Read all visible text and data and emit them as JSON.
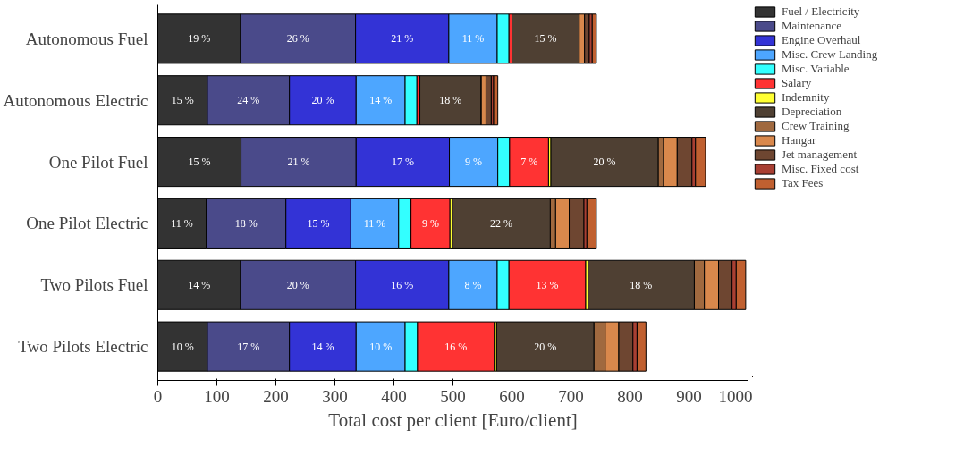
{
  "chart_data": {
    "type": "bar",
    "orientation": "horizontal",
    "stacked": true,
    "categories": [
      "Autonomous Fuel",
      "Autonomous Electric",
      "One Pilot Fuel",
      "One Pilot Electric",
      "Two Pilots Fuel",
      "Two Pilots Electric"
    ],
    "xlabel": "Total cost per client [Euro/client]",
    "xlim": [
      0,
      1000
    ],
    "xticks": [
      0,
      100,
      200,
      300,
      400,
      500,
      600,
      700,
      800,
      900,
      1000
    ],
    "grid": false,
    "legend": "top right",
    "series": [
      {
        "name": "Fuel / Electricity",
        "color": "#333333",
        "values": [
          140,
          84,
          141,
          82,
          140,
          84
        ]
      },
      {
        "name": "Maintenance",
        "color": "#4a4a8a",
        "values": [
          195,
          139,
          195,
          135,
          195,
          139
        ]
      },
      {
        "name": "Engine Overhaul",
        "color": "#3333d6",
        "values": [
          158,
          113,
          158,
          110,
          158,
          113
        ]
      },
      {
        "name": "Misc. Crew Landing",
        "color": "#4da6ff",
        "values": [
          82,
          83,
          82,
          81,
          82,
          83
        ]
      },
      {
        "name": "Misc. Variable",
        "color": "#33ffff",
        "values": [
          20,
          20,
          20,
          21,
          20,
          21
        ]
      },
      {
        "name": "Salary",
        "color": "#ff3333",
        "values": [
          5,
          5,
          66,
          66,
          130,
          130
        ]
      },
      {
        "name": "Indemnity",
        "color": "#ffff33",
        "values": [
          0,
          0,
          4,
          4,
          4,
          4
        ]
      },
      {
        "name": "Depreciation",
        "color": "#4f4033",
        "values": [
          114,
          104,
          182,
          166,
          180,
          165
        ]
      },
      {
        "name": "Crew Training",
        "color": "#a0693f",
        "values": [
          0,
          0,
          9,
          9,
          17,
          19
        ]
      },
      {
        "name": "Hangar",
        "color": "#d9884c",
        "values": [
          9,
          8,
          23,
          23,
          24,
          23
        ]
      },
      {
        "name": "Jet management",
        "color": "#6e4631",
        "values": [
          8,
          9,
          25,
          25,
          23,
          24
        ]
      },
      {
        "name": "Misc. Fixed cost",
        "color": "#a83f33",
        "values": [
          5,
          4,
          6,
          5,
          7,
          7
        ]
      },
      {
        "name": "Tax Fees",
        "color": "#c06030",
        "values": [
          7,
          7,
          17,
          16,
          16,
          15
        ]
      }
    ],
    "annotations": [
      {
        "text": "19 %",
        "x": 70,
        "y": "Autonomous Fuel"
      },
      {
        "text": "26 %",
        "x": 237.5,
        "y": "Autonomous Fuel"
      },
      {
        "text": "21 %",
        "x": 414,
        "y": "Autonomous Fuel"
      },
      {
        "text": "11 %",
        "x": 534,
        "y": "Autonomous Fuel"
      },
      {
        "text": "15 %",
        "x": 657,
        "y": "Autonomous Fuel"
      },
      {
        "text": "15 %",
        "x": 42,
        "y": "Autonomous Electric"
      },
      {
        "text": "24 %",
        "x": 153.5,
        "y": "Autonomous Electric"
      },
      {
        "text": "20 %",
        "x": 279.5,
        "y": "Autonomous Electric"
      },
      {
        "text": "14 %",
        "x": 377.5,
        "y": "Autonomous Electric"
      },
      {
        "text": "18 %",
        "x": 496,
        "y": "Autonomous Electric"
      },
      {
        "text": "15 %",
        "x": 70.5,
        "y": "One Pilot Fuel"
      },
      {
        "text": "21 %",
        "x": 238.5,
        "y": "One Pilot Fuel"
      },
      {
        "text": "17 %",
        "x": 415,
        "y": "One Pilot Fuel"
      },
      {
        "text": "9 %",
        "x": 535,
        "y": "One Pilot Fuel"
      },
      {
        "text": "7 %",
        "x": 629,
        "y": "One Pilot Fuel"
      },
      {
        "text": "20 %",
        "x": 757,
        "y": "One Pilot Fuel"
      },
      {
        "text": "11 %",
        "x": 41,
        "y": "One Pilot Electric"
      },
      {
        "text": "18 %",
        "x": 149.5,
        "y": "One Pilot Electric"
      },
      {
        "text": "15 %",
        "x": 272,
        "y": "One Pilot Electric"
      },
      {
        "text": "11 %",
        "x": 367.5,
        "y": "One Pilot Electric"
      },
      {
        "text": "9 %",
        "x": 462,
        "y": "One Pilot Electric"
      },
      {
        "text": "22 %",
        "x": 582,
        "y": "One Pilot Electric"
      },
      {
        "text": "14 %",
        "x": 70,
        "y": "Two Pilots Fuel"
      },
      {
        "text": "20 %",
        "x": 237.5,
        "y": "Two Pilots Fuel"
      },
      {
        "text": "16 %",
        "x": 414,
        "y": "Two Pilots Fuel"
      },
      {
        "text": "8 %",
        "x": 534,
        "y": "Two Pilots Fuel"
      },
      {
        "text": "13 %",
        "x": 660,
        "y": "Two Pilots Fuel"
      },
      {
        "text": "18 %",
        "x": 818.5,
        "y": "Two Pilots Fuel"
      },
      {
        "text": "10 %",
        "x": 42,
        "y": "Two Pilots Electric"
      },
      {
        "text": "17 %",
        "x": 153.5,
        "y": "Two Pilots Electric"
      },
      {
        "text": "14 %",
        "x": 279.5,
        "y": "Two Pilots Electric"
      },
      {
        "text": "10 %",
        "x": 377.5,
        "y": "Two Pilots Electric"
      },
      {
        "text": "16 %",
        "x": 505,
        "y": "Two Pilots Electric"
      },
      {
        "text": "20 %",
        "x": 656.5,
        "y": "Two Pilots Electric"
      }
    ]
  }
}
